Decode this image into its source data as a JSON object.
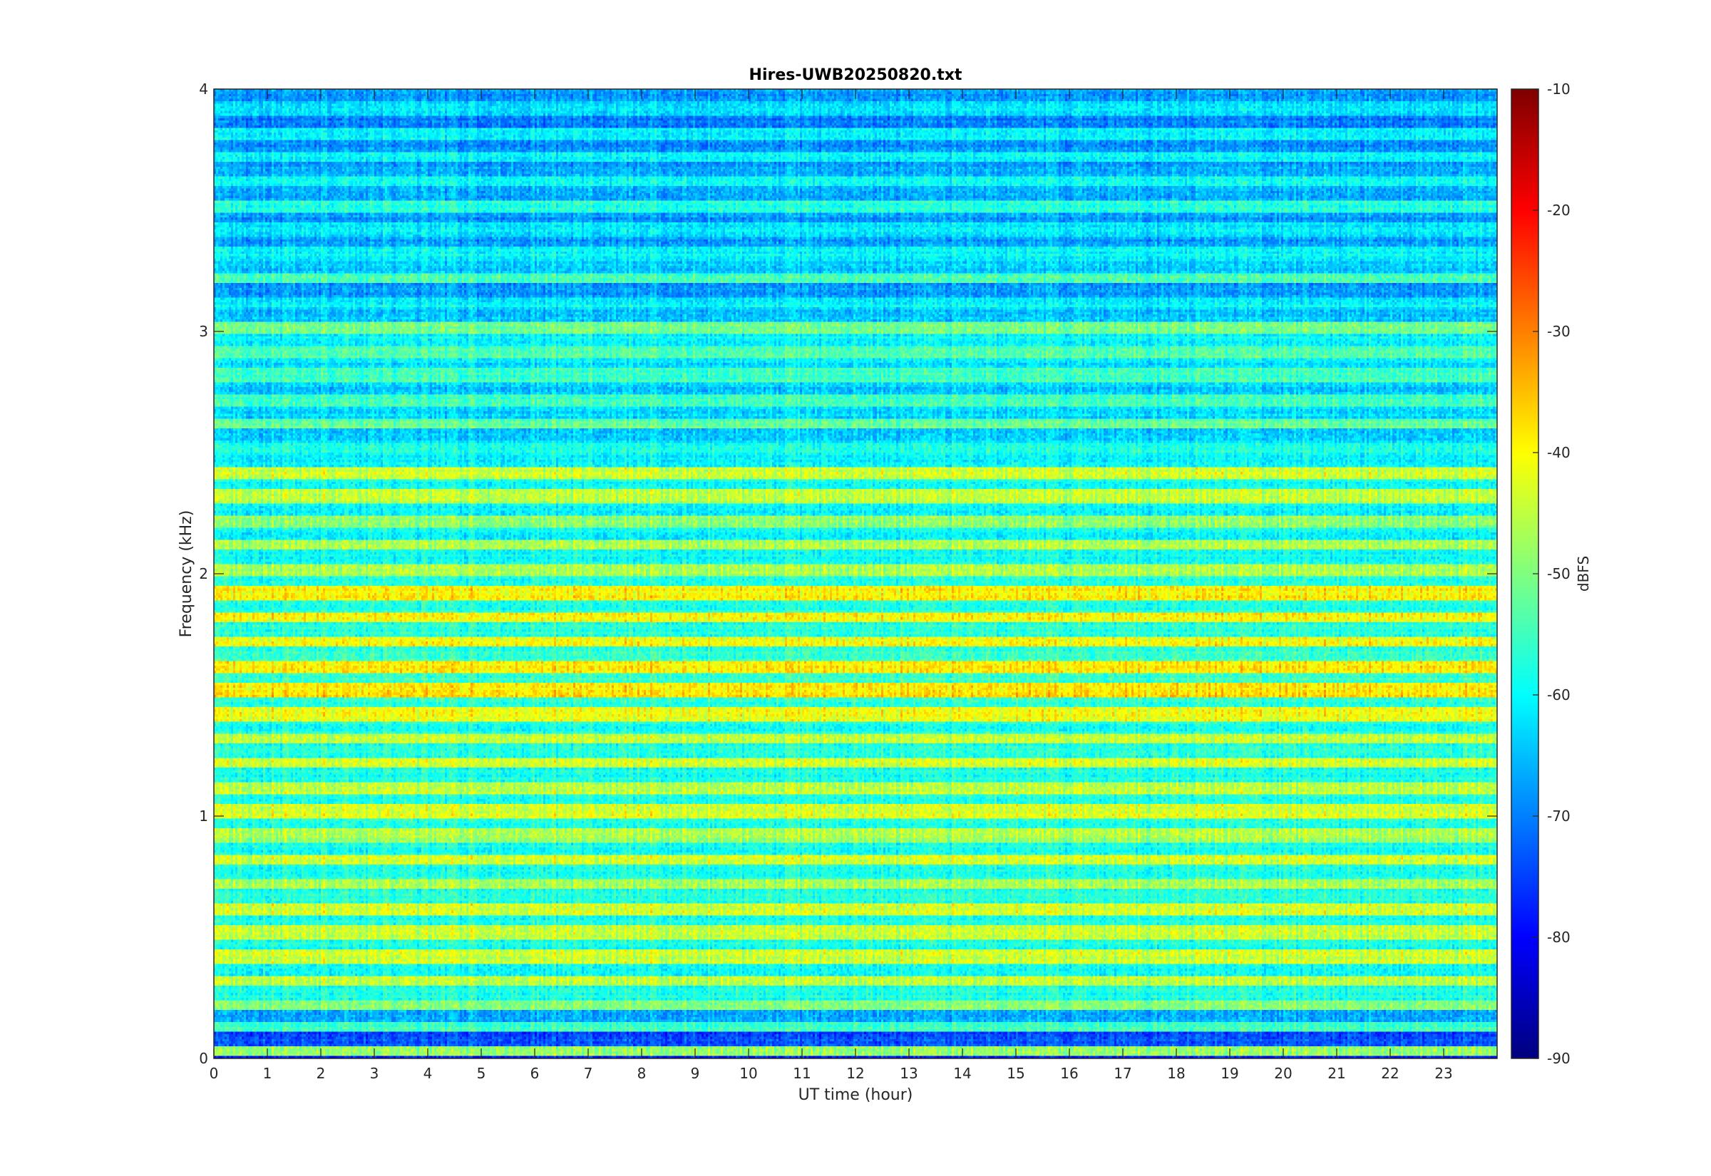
{
  "chart_data": {
    "type": "heatmap",
    "title": "Hires-UWB20250820.txt",
    "xlabel": "UT time (hour)",
    "ylabel": "Frequency (kHz)",
    "xlim": [
      0,
      24
    ],
    "ylim": [
      0,
      4
    ],
    "x_ticks": [
      "0",
      "1",
      "2",
      "3",
      "4",
      "5",
      "6",
      "7",
      "8",
      "9",
      "10",
      "11",
      "12",
      "13",
      "14",
      "15",
      "16",
      "17",
      "18",
      "19",
      "20",
      "21",
      "22",
      "23"
    ],
    "y_ticks": [
      "0",
      "1",
      "2",
      "3",
      "4"
    ],
    "colormap": "jet",
    "colorbar": {
      "label": "dBFS",
      "range": [
        -90,
        -10
      ],
      "ticks": [
        "-10",
        "-20",
        "-30",
        "-40",
        "-50",
        "-60",
        "-70",
        "-80",
        "-90"
      ]
    },
    "bands": [
      {
        "f": 0.03,
        "level": -48
      },
      {
        "f": 0.08,
        "level": -74
      },
      {
        "f": 0.13,
        "level": -55
      },
      {
        "f": 0.17,
        "level": -66
      },
      {
        "f": 0.22,
        "level": -50
      },
      {
        "f": 0.27,
        "level": -58
      },
      {
        "f": 0.32,
        "level": -46
      },
      {
        "f": 0.37,
        "level": -60
      },
      {
        "f": 0.42,
        "level": -45
      },
      {
        "f": 0.47,
        "level": -58
      },
      {
        "f": 0.52,
        "level": -46
      },
      {
        "f": 0.57,
        "level": -58
      },
      {
        "f": 0.62,
        "level": -44
      },
      {
        "f": 0.67,
        "level": -57
      },
      {
        "f": 0.72,
        "level": -47
      },
      {
        "f": 0.77,
        "level": -58
      },
      {
        "f": 0.82,
        "level": -45
      },
      {
        "f": 0.87,
        "level": -58
      },
      {
        "f": 0.92,
        "level": -48
      },
      {
        "f": 0.97,
        "level": -58
      },
      {
        "f": 1.02,
        "level": -44
      },
      {
        "f": 1.07,
        "level": -58
      },
      {
        "f": 1.12,
        "level": -46
      },
      {
        "f": 1.17,
        "level": -58
      },
      {
        "f": 1.22,
        "level": -45
      },
      {
        "f": 1.27,
        "level": -58
      },
      {
        "f": 1.32,
        "level": -46
      },
      {
        "f": 1.37,
        "level": -58
      },
      {
        "f": 1.42,
        "level": -42
      },
      {
        "f": 1.47,
        "level": -57
      },
      {
        "f": 1.52,
        "level": -39
      },
      {
        "f": 1.57,
        "level": -56
      },
      {
        "f": 1.62,
        "level": -40
      },
      {
        "f": 1.67,
        "level": -56
      },
      {
        "f": 1.72,
        "level": -41
      },
      {
        "f": 1.77,
        "level": -57
      },
      {
        "f": 1.82,
        "level": -41
      },
      {
        "f": 1.87,
        "level": -57
      },
      {
        "f": 1.92,
        "level": -40
      },
      {
        "f": 1.97,
        "level": -58
      },
      {
        "f": 2.02,
        "level": -47
      },
      {
        "f": 2.07,
        "level": -59
      },
      {
        "f": 2.12,
        "level": -48
      },
      {
        "f": 2.17,
        "level": -60
      },
      {
        "f": 2.22,
        "level": -49
      },
      {
        "f": 2.27,
        "level": -60
      },
      {
        "f": 2.32,
        "level": -46
      },
      {
        "f": 2.37,
        "level": -59
      },
      {
        "f": 2.42,
        "level": -45
      },
      {
        "f": 2.47,
        "level": -60
      },
      {
        "f": 2.52,
        "level": -58
      },
      {
        "f": 2.57,
        "level": -63
      },
      {
        "f": 2.62,
        "level": -52
      },
      {
        "f": 2.67,
        "level": -63
      },
      {
        "f": 2.72,
        "level": -55
      },
      {
        "f": 2.77,
        "level": -64
      },
      {
        "f": 2.82,
        "level": -55
      },
      {
        "f": 2.87,
        "level": -62
      },
      {
        "f": 2.92,
        "level": -54
      },
      {
        "f": 2.97,
        "level": -60
      },
      {
        "f": 3.02,
        "level": -50
      },
      {
        "f": 3.07,
        "level": -64
      },
      {
        "f": 3.12,
        "level": -60
      },
      {
        "f": 3.17,
        "level": -68
      },
      {
        "f": 3.22,
        "level": -54
      },
      {
        "f": 3.27,
        "level": -64
      },
      {
        "f": 3.32,
        "level": -60
      },
      {
        "f": 3.37,
        "level": -68
      },
      {
        "f": 3.42,
        "level": -62
      },
      {
        "f": 3.47,
        "level": -68
      },
      {
        "f": 3.52,
        "level": -57
      },
      {
        "f": 3.57,
        "level": -66
      },
      {
        "f": 3.62,
        "level": -60
      },
      {
        "f": 3.67,
        "level": -67
      },
      {
        "f": 3.72,
        "level": -60
      },
      {
        "f": 3.77,
        "level": -68
      },
      {
        "f": 3.82,
        "level": -61
      },
      {
        "f": 3.87,
        "level": -70
      },
      {
        "f": 3.92,
        "level": -62
      },
      {
        "f": 3.97,
        "level": -68
      }
    ]
  }
}
